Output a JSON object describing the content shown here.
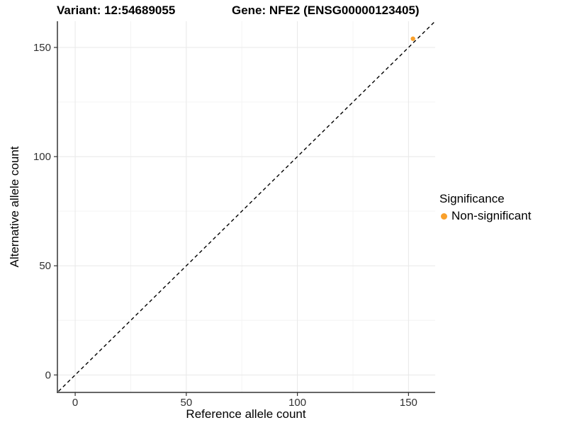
{
  "chart_data": {
    "type": "scatter",
    "title_left": "Variant: 12:54689055",
    "title_right": "Gene: NFE2 (ENSG00000123405)",
    "xlabel": "Reference allele count",
    "ylabel": "Alternative allele count",
    "xlim": [
      -8,
      162
    ],
    "ylim": [
      -8,
      162
    ],
    "x_ticks": [
      0,
      50,
      100,
      150
    ],
    "y_ticks": [
      0,
      50,
      100,
      150
    ],
    "grid": true,
    "points": [
      {
        "x": 152,
        "y": 154,
        "series": "Non-significant"
      }
    ],
    "reference_line": {
      "type": "identity",
      "style": "dashed",
      "color": "#000000"
    },
    "legend": {
      "title": "Significance",
      "position": "right",
      "entries": [
        {
          "label": "Non-significant",
          "color": "#F9A02B"
        }
      ]
    },
    "colors": {
      "point": "#F9A02B",
      "axis_line": "#333333",
      "tick_label": "#303030",
      "grid_major": "#e8e8e8",
      "grid_minor": "#f4f4f4"
    }
  }
}
